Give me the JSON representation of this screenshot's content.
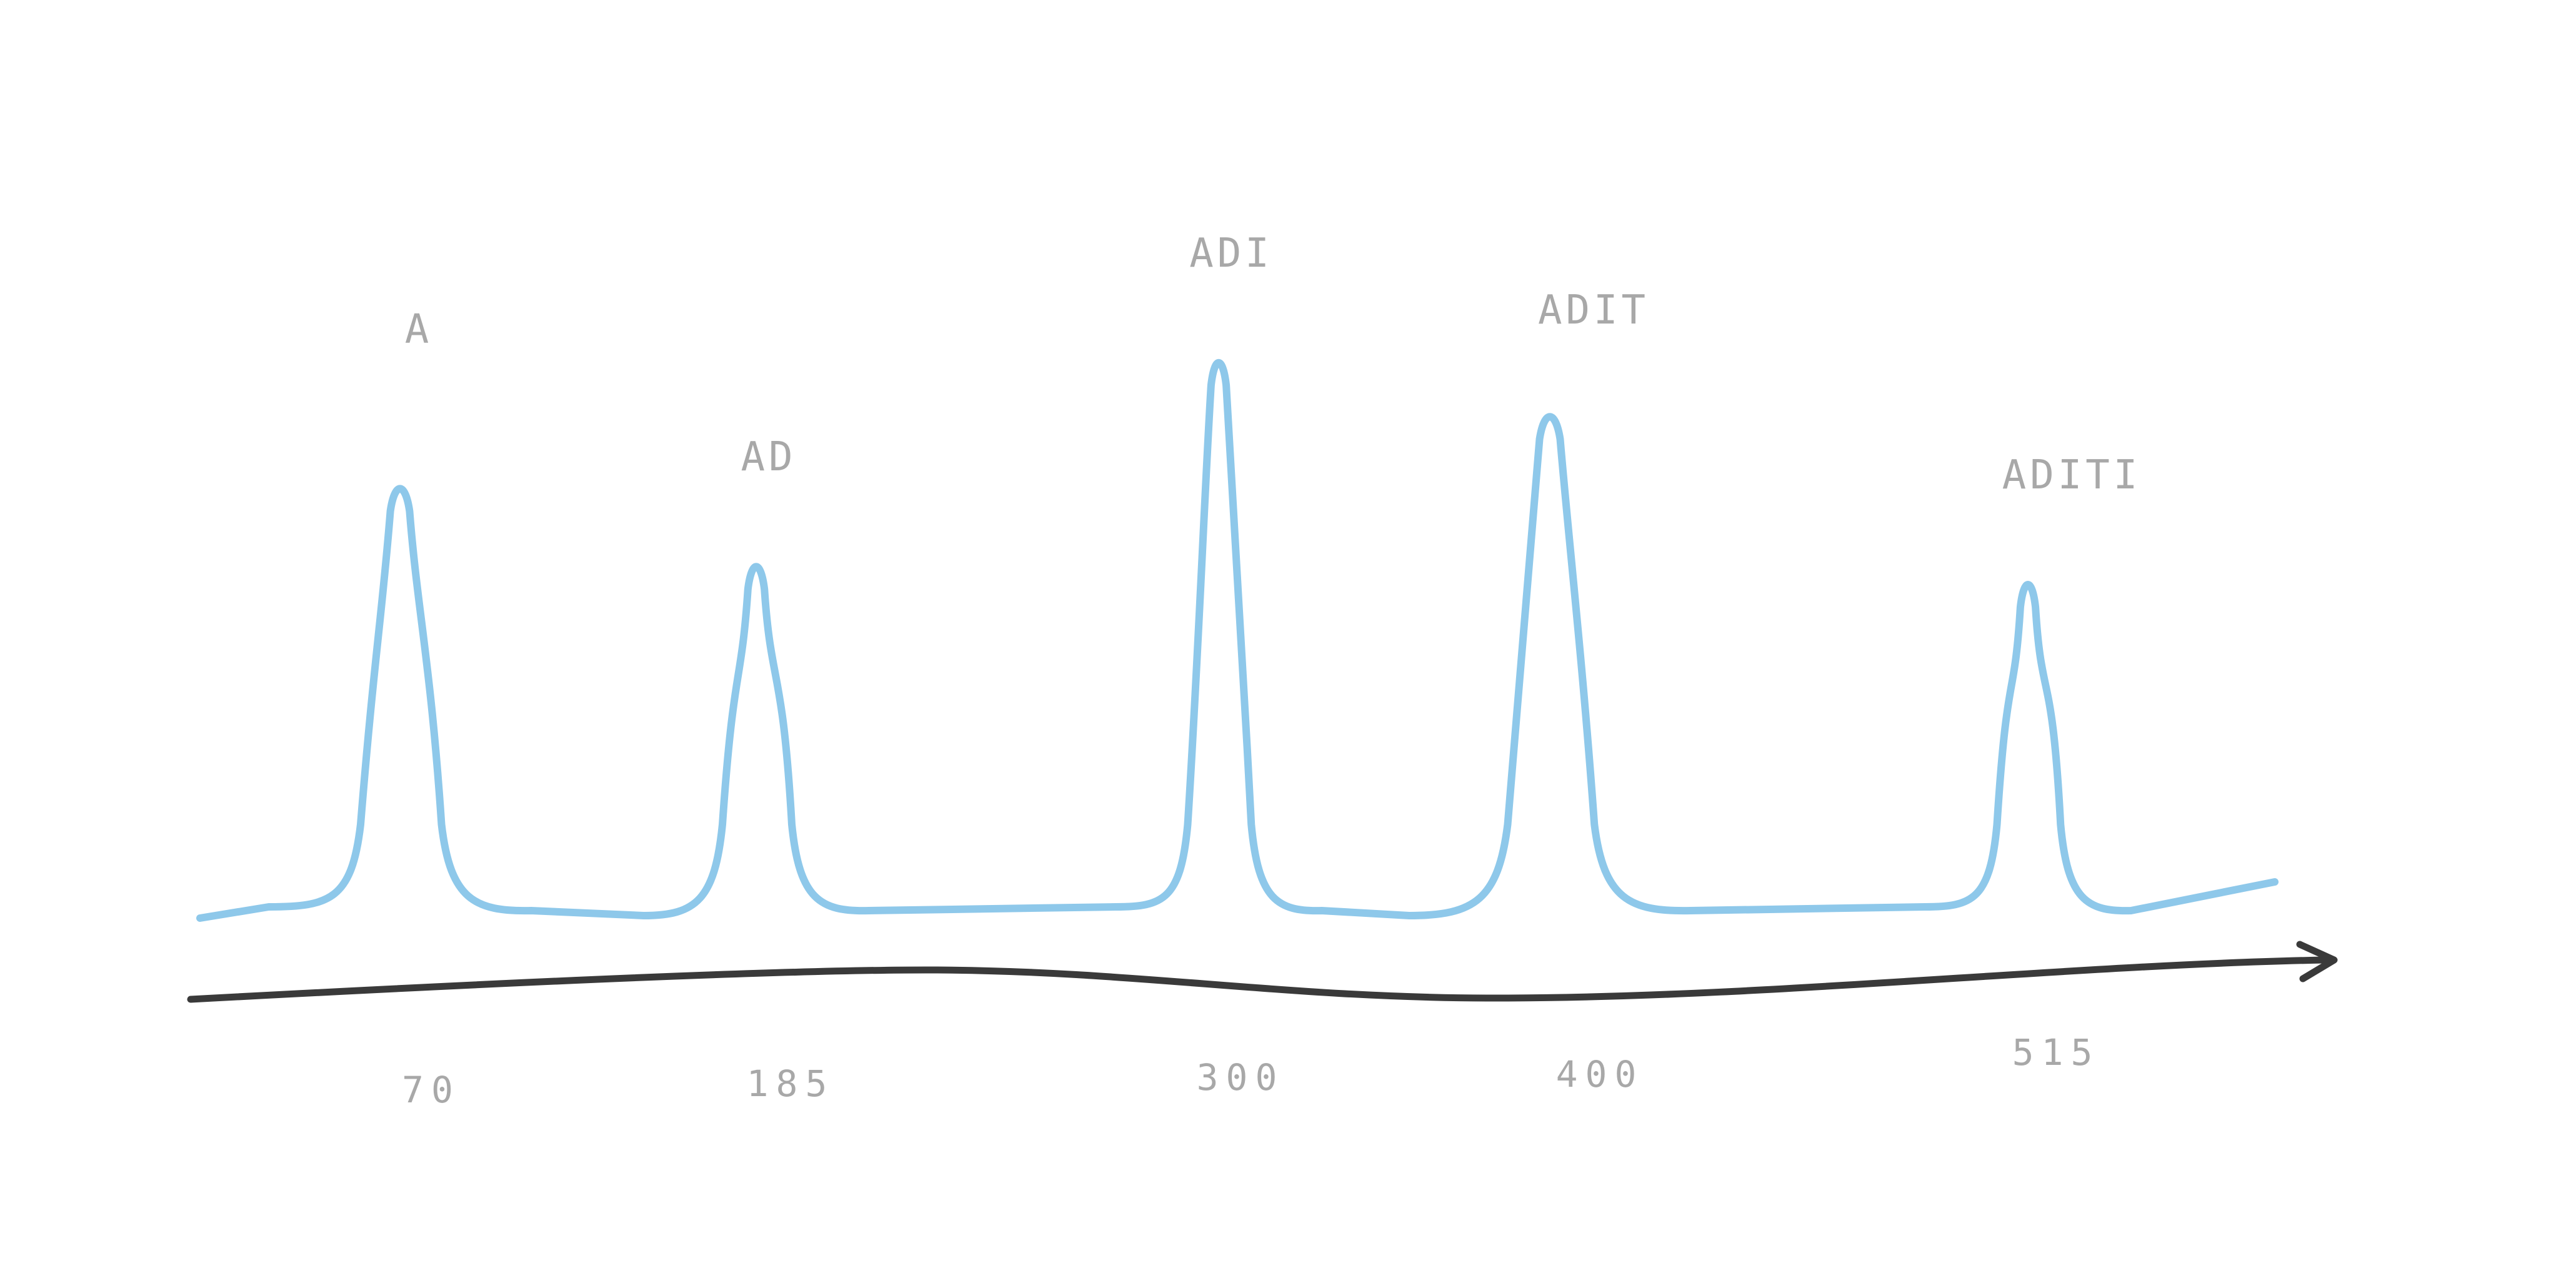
{
  "chart_data": {
    "type": "line",
    "title": "",
    "xlabel": "",
    "ylabel": "",
    "x_ticks": [
      "70",
      "185",
      "300",
      "400",
      "515"
    ],
    "peaks": [
      {
        "x": 70,
        "label": "A",
        "height": 0.71
      },
      {
        "x": 185,
        "label": "AD",
        "height": 0.58
      },
      {
        "x": 300,
        "label": "ADI",
        "height": 0.92
      },
      {
        "x": 400,
        "label": "ADIT",
        "height": 0.83
      },
      {
        "x": 515,
        "label": "ADITI",
        "height": 0.55
      }
    ],
    "grid": false,
    "legend": "none",
    "colors": {
      "signal": "#8ec8ea",
      "axis": "#3a3a3a",
      "text": "#a8a8a8"
    }
  }
}
